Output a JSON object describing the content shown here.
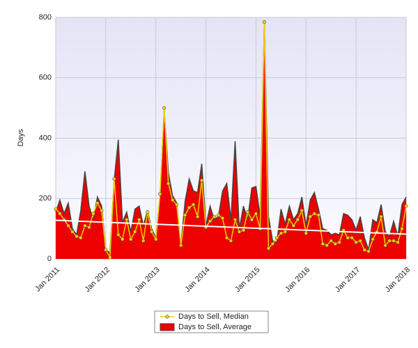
{
  "chart_data": {
    "type": "area-line",
    "y_label": "Days",
    "x": [
      "2011-01",
      "2011-02",
      "2011-03",
      "2011-04",
      "2011-05",
      "2011-06",
      "2011-07",
      "2011-08",
      "2011-09",
      "2011-10",
      "2011-11",
      "2011-12",
      "2012-01",
      "2012-02",
      "2012-03",
      "2012-04",
      "2012-05",
      "2012-06",
      "2012-07",
      "2012-08",
      "2012-09",
      "2012-10",
      "2012-11",
      "2012-12",
      "2013-01",
      "2013-02",
      "2013-03",
      "2013-04",
      "2013-05",
      "2013-06",
      "2013-07",
      "2013-08",
      "2013-09",
      "2013-10",
      "2013-11",
      "2013-12",
      "2014-01",
      "2014-02",
      "2014-03",
      "2014-04",
      "2014-05",
      "2014-06",
      "2014-07",
      "2014-08",
      "2014-09",
      "2014-10",
      "2014-11",
      "2014-12",
      "2015-01",
      "2015-02",
      "2015-03",
      "2015-04",
      "2015-05",
      "2015-06",
      "2015-07",
      "2015-08",
      "2015-09",
      "2015-10",
      "2015-11",
      "2015-12",
      "2016-01",
      "2016-02",
      "2016-03",
      "2016-04",
      "2016-05",
      "2016-06",
      "2016-07",
      "2016-08",
      "2016-09",
      "2016-10",
      "2016-11",
      "2016-12",
      "2017-01",
      "2017-02",
      "2017-03",
      "2017-04",
      "2017-05",
      "2017-06",
      "2017-07",
      "2017-08",
      "2017-09",
      "2017-10",
      "2017-11",
      "2017-12",
      "2018-01"
    ],
    "series": [
      {
        "name": "Days to Sell, Median",
        "color": "#f0d000",
        "kind": "line",
        "values": [
          165,
          150,
          130,
          110,
          90,
          75,
          70,
          110,
          105,
          150,
          185,
          160,
          30,
          5,
          265,
          80,
          65,
          130,
          65,
          90,
          130,
          60,
          155,
          90,
          65,
          215,
          500,
          250,
          195,
          180,
          45,
          145,
          170,
          180,
          140,
          260,
          105,
          125,
          140,
          145,
          135,
          70,
          60,
          130,
          90,
          95,
          155,
          130,
          150,
          100,
          785,
          35,
          50,
          70,
          85,
          90,
          130,
          110,
          130,
          160,
          85,
          140,
          150,
          145,
          50,
          45,
          60,
          50,
          55,
          95,
          70,
          70,
          55,
          60,
          30,
          25,
          65,
          90,
          140,
          45,
          60,
          60,
          55,
          100,
          175
        ]
      },
      {
        "name": "Days to Sell, Average",
        "color": "#ee0000",
        "kind": "area",
        "values": [
          155,
          195,
          150,
          185,
          100,
          80,
          160,
          290,
          175,
          130,
          205,
          175,
          30,
          20,
          260,
          395,
          120,
          155,
          90,
          165,
          175,
          110,
          160,
          100,
          70,
          210,
          495,
          285,
          210,
          185,
          45,
          190,
          265,
          225,
          220,
          315,
          110,
          175,
          130,
          140,
          225,
          250,
          130,
          390,
          100,
          175,
          130,
          235,
          240,
          140,
          785,
          140,
          60,
          55,
          165,
          115,
          175,
          130,
          150,
          205,
          110,
          195,
          220,
          165,
          100,
          95,
          80,
          85,
          80,
          150,
          145,
          130,
          95,
          140,
          70,
          30,
          130,
          120,
          180,
          90,
          75,
          125,
          75,
          180,
          205
        ]
      }
    ],
    "trend": {
      "color": "#ffffff",
      "values": [
        128,
        82
      ]
    },
    "ylim": [
      0,
      800
    ],
    "yticks": [
      0,
      200,
      400,
      600,
      800
    ],
    "xticks": [
      {
        "value": "2011-01",
        "label": "Jan 2011"
      },
      {
        "value": "2012-01",
        "label": "Jan 2012"
      },
      {
        "value": "2013-01",
        "label": "Jan 2013"
      },
      {
        "value": "2014-01",
        "label": "Jan 2014"
      },
      {
        "value": "2015-01",
        "label": "Jan 2015"
      },
      {
        "value": "2016-01",
        "label": "Jan 2016"
      },
      {
        "value": "2017-01",
        "label": "Jan 2017"
      },
      {
        "value": "2018-01",
        "label": "Jan 2018"
      }
    ],
    "grid": true
  }
}
